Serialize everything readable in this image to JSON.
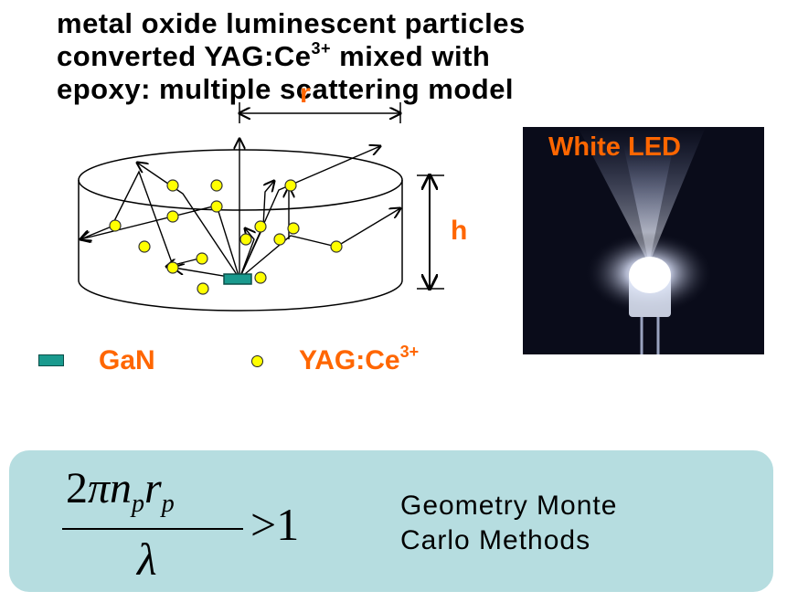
{
  "title": {
    "line1": "metal oxide luminescent particles",
    "line2_pre": "converted YAG:Ce",
    "line2_sup": "3+",
    "line2_post": " mixed with",
    "line3": "epoxy: multiple scattering model"
  },
  "diagram": {
    "radius_label": "r",
    "height_label": "h",
    "colors": {
      "particle": "#ffff00",
      "chip": "#1a9a8e",
      "accent": "#ff6600"
    }
  },
  "photo": {
    "label": "White LED"
  },
  "legend": {
    "gan_label": "GaN",
    "gan_icon": "gan-chip-icon",
    "yag_label": "YAG:Ce",
    "yag_sup": "3+",
    "yag_icon": "yag-particle-icon"
  },
  "formula": {
    "numerator_coef": "2",
    "numerator_pi": "π",
    "n": "n",
    "n_sub": "p",
    "r": "r",
    "r_sub": "p",
    "denominator": "λ",
    "relation": ">1"
  },
  "method": {
    "line1": "Geometry Monte",
    "line2": "Carlo Methods"
  }
}
